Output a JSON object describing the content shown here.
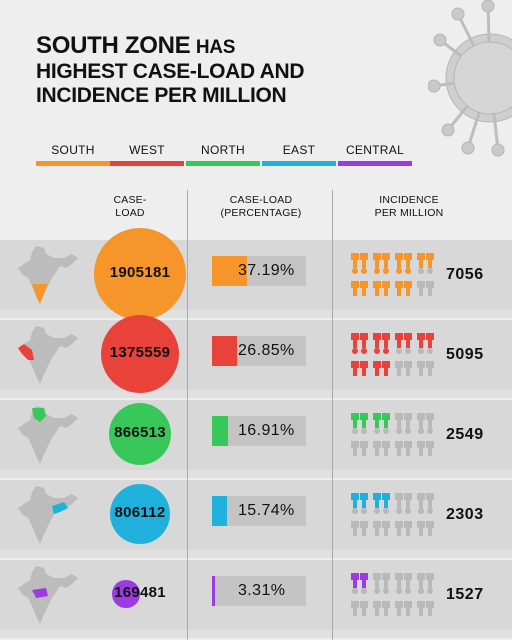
{
  "title": {
    "line1_a": "SOUTH ZONE",
    "line1_b": "HAS",
    "line2": "HIGHEST CASE-LOAD AND",
    "line3": "INCIDENCE PER MILLION"
  },
  "legend": [
    {
      "label": "SOUTH",
      "color": "#f5952a"
    },
    {
      "label": "WEST",
      "color": "#e8423a"
    },
    {
      "label": "NORTH",
      "color": "#38c85a"
    },
    {
      "label": "EAST",
      "color": "#1fb1dc"
    },
    {
      "label": "CENTRAL",
      "color": "#9c3be0"
    }
  ],
  "headers": {
    "caseload": [
      "CASE-",
      "LOAD"
    ],
    "percentage": [
      "CASE-LOAD",
      "(PERCENTAGE)"
    ],
    "incidence": [
      "INCIDENCE",
      "PER MILLION"
    ]
  },
  "chart_data": {
    "type": "table",
    "rows": [
      {
        "zone": "SOUTH",
        "caseload": 1905181,
        "caseload_label": "1905181",
        "percentage": 37.19,
        "percentage_label": "37.19%",
        "incidence": 7056,
        "incidence_label": "7056",
        "icons_filled": 7,
        "icons_total": 8,
        "color": "#f5952a"
      },
      {
        "zone": "WEST",
        "caseload": 1375559,
        "caseload_label": "1375559",
        "percentage": 26.85,
        "percentage_label": "26.85%",
        "incidence": 5095,
        "incidence_label": "5095",
        "icons_filled": 6,
        "icons_total": 8,
        "color": "#e8423a"
      },
      {
        "zone": "NORTH",
        "caseload": 866513,
        "caseload_label": "866513",
        "percentage": 16.91,
        "percentage_label": "16.91%",
        "incidence": 2549,
        "incidence_label": "2549",
        "icons_filled": 2,
        "icons_total": 8,
        "color": "#38c85a"
      },
      {
        "zone": "EAST",
        "caseload": 806112,
        "caseload_label": "806112",
        "percentage": 15.74,
        "percentage_label": "15.74%",
        "incidence": 2303,
        "incidence_label": "2303",
        "icons_filled": 2,
        "icons_total": 8,
        "color": "#1fb1dc"
      },
      {
        "zone": "CENTRAL",
        "caseload": 169481,
        "caseload_label": "169481",
        "percentage": 3.31,
        "percentage_label": "3.31%",
        "incidence": 1527,
        "incidence_label": "1527",
        "icons_filled": 1,
        "icons_total": 8,
        "color": "#9c3be0"
      }
    ]
  }
}
